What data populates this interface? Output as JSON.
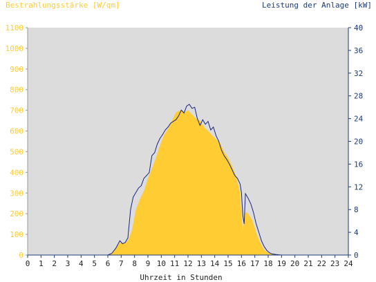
{
  "chart_data": {
    "type": "area",
    "title_left": "Bestrahlungsstärke [W/qm]",
    "title_right": "Leistung der Anlage [kW]",
    "xlabel": "Uhrzeit in Stunden",
    "xlim": [
      0,
      24
    ],
    "ylim_left": [
      0,
      1100
    ],
    "ylim_right": [
      0,
      40
    ],
    "x_ticks": [
      "0",
      "1",
      "2",
      "3",
      "4",
      "5",
      "6",
      "7",
      "8",
      "9",
      "10",
      "11",
      "12",
      "13",
      "14",
      "15",
      "16",
      "17",
      "18",
      "19",
      "20",
      "21",
      "22",
      "23",
      "24"
    ],
    "y_left_ticks": [
      "0",
      "100",
      "200",
      "300",
      "400",
      "500",
      "600",
      "700",
      "800",
      "900",
      "1000",
      "1100"
    ],
    "y_right_ticks": [
      "0",
      "4",
      "8",
      "12",
      "16",
      "20",
      "24",
      "28",
      "32",
      "36",
      "40"
    ],
    "grid": false,
    "colors": {
      "irradiance": "#ffcc33",
      "power": "#1a237e",
      "left_axis_text": "#ffcc33",
      "right_axis_text": "#1a3a7a",
      "plot_bg": "#dcdcdc",
      "x_axis_text": "#222222"
    },
    "series": [
      {
        "name": "Bestrahlungsstärke",
        "axis": "left",
        "style": "area",
        "x": [
          0,
          6.0,
          6.3,
          6.6,
          6.9,
          7.2,
          7.5,
          7.8,
          8.1,
          8.4,
          8.7,
          9.0,
          9.3,
          9.6,
          9.9,
          10.2,
          10.5,
          10.8,
          11.1,
          11.4,
          11.7,
          12.0,
          12.3,
          12.6,
          12.9,
          13.2,
          13.5,
          13.8,
          14.1,
          14.4,
          14.7,
          15.0,
          15.3,
          15.6,
          15.9,
          16.0,
          16.1,
          16.3,
          16.5,
          16.8,
          17.1,
          17.4,
          17.7,
          18.0,
          18.3,
          18.6,
          19.0,
          24
        ],
        "values": [
          0,
          0,
          10,
          35,
          60,
          55,
          70,
          120,
          220,
          270,
          310,
          370,
          420,
          470,
          530,
          580,
          610,
          650,
          690,
          700,
          690,
          700,
          680,
          660,
          650,
          620,
          600,
          580,
          560,
          540,
          500,
          470,
          430,
          380,
          300,
          200,
          120,
          210,
          200,
          170,
          110,
          60,
          25,
          10,
          4,
          0,
          0,
          0
        ]
      },
      {
        "name": "Leistung",
        "axis": "right",
        "style": "line",
        "x": [
          0,
          6.0,
          6.3,
          6.6,
          6.9,
          7.1,
          7.3,
          7.5,
          7.7,
          7.9,
          8.1,
          8.3,
          8.5,
          8.7,
          8.9,
          9.1,
          9.3,
          9.5,
          9.7,
          9.9,
          10.1,
          10.3,
          10.5,
          10.7,
          10.9,
          11.1,
          11.3,
          11.5,
          11.7,
          11.9,
          12.1,
          12.3,
          12.5,
          12.7,
          12.9,
          13.1,
          13.3,
          13.5,
          13.7,
          13.9,
          14.1,
          14.3,
          14.5,
          14.7,
          14.9,
          15.1,
          15.3,
          15.5,
          15.7,
          15.9,
          16.0,
          16.1,
          16.2,
          16.3,
          16.5,
          16.7,
          16.9,
          17.1,
          17.3,
          17.5,
          17.7,
          17.9,
          18.1,
          18.3,
          18.6,
          19.0,
          24
        ],
        "values": [
          0,
          0,
          0.3,
          1.2,
          2.5,
          2.0,
          2.2,
          3.0,
          8.0,
          10.2,
          11.0,
          11.8,
          12.2,
          13.5,
          14.0,
          14.5,
          17.5,
          18.0,
          19.5,
          20.5,
          21.2,
          22.0,
          22.5,
          23.2,
          23.5,
          23.8,
          24.5,
          25.5,
          25.0,
          26.2,
          26.5,
          25.8,
          26.0,
          24.0,
          22.8,
          23.8,
          23.0,
          23.5,
          22.0,
          22.5,
          21.0,
          20.0,
          18.5,
          17.5,
          16.8,
          16.0,
          15.0,
          14.0,
          13.5,
          12.5,
          11.0,
          7.0,
          5.5,
          10.8,
          10.0,
          9.0,
          7.5,
          5.5,
          4.0,
          2.5,
          1.5,
          0.8,
          0.4,
          0.2,
          0.1,
          0,
          0
        ]
      }
    ]
  }
}
